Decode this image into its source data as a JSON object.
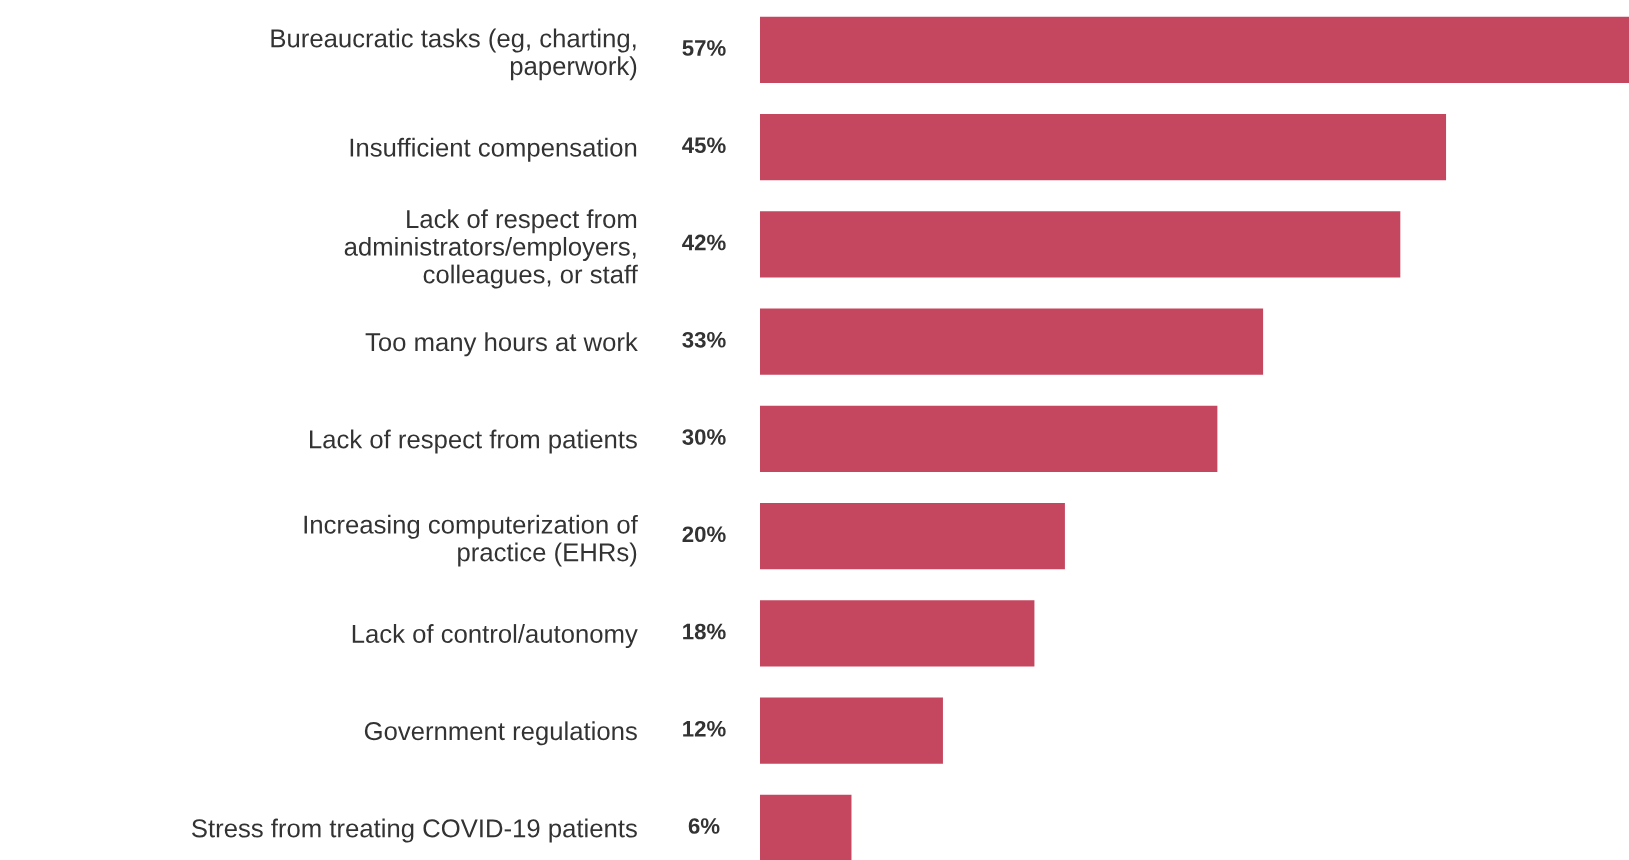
{
  "chart_data": {
    "type": "bar",
    "orientation": "horizontal",
    "categories": [
      "Bureaucratic tasks (eg, charting,\npaperwork)",
      "Insufficient compensation",
      "Lack of respect from\nadministrators/employers,\ncolleagues, or staff",
      "Too many hours at work",
      "Lack of respect from patients",
      "Increasing computerization of\npractice (EHRs)",
      "Lack of control/autonomy",
      "Government regulations",
      "Stress from treating COVID-19 patients"
    ],
    "values": [
      57,
      45,
      42,
      33,
      30,
      20,
      18,
      12,
      6
    ],
    "value_labels": [
      "57%",
      "45%",
      "42%",
      "33%",
      "30%",
      "20%",
      "18%",
      "12%",
      "6%"
    ],
    "color": "#c5465f",
    "grid": false,
    "legend": false
  }
}
